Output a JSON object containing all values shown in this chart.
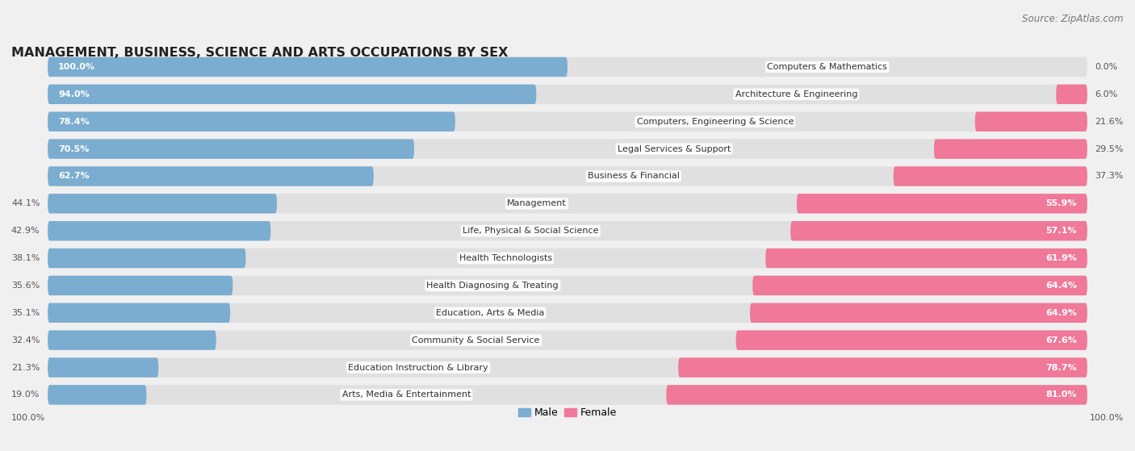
{
  "title": "MANAGEMENT, BUSINESS, SCIENCE AND ARTS OCCUPATIONS BY SEX",
  "source": "Source: ZipAtlas.com",
  "categories": [
    "Computers & Mathematics",
    "Architecture & Engineering",
    "Computers, Engineering & Science",
    "Legal Services & Support",
    "Business & Financial",
    "Management",
    "Life, Physical & Social Science",
    "Health Technologists",
    "Health Diagnosing & Treating",
    "Education, Arts & Media",
    "Community & Social Service",
    "Education Instruction & Library",
    "Arts, Media & Entertainment"
  ],
  "male_pct": [
    100.0,
    94.0,
    78.4,
    70.5,
    62.7,
    44.1,
    42.9,
    38.1,
    35.6,
    35.1,
    32.4,
    21.3,
    19.0
  ],
  "female_pct": [
    0.0,
    6.0,
    21.6,
    29.5,
    37.3,
    55.9,
    57.1,
    61.9,
    64.4,
    64.9,
    67.6,
    78.7,
    81.0
  ],
  "male_color": "#7badd1",
  "female_color": "#f07898",
  "bg_color": "#f0f0f0",
  "row_bg_color": "#e0e0e0",
  "title_fontsize": 11.5,
  "source_fontsize": 8.5,
  "label_fontsize": 8,
  "cat_fontsize": 8,
  "legend_fontsize": 9,
  "inside_label_color": "white",
  "outside_label_color": "#555555"
}
